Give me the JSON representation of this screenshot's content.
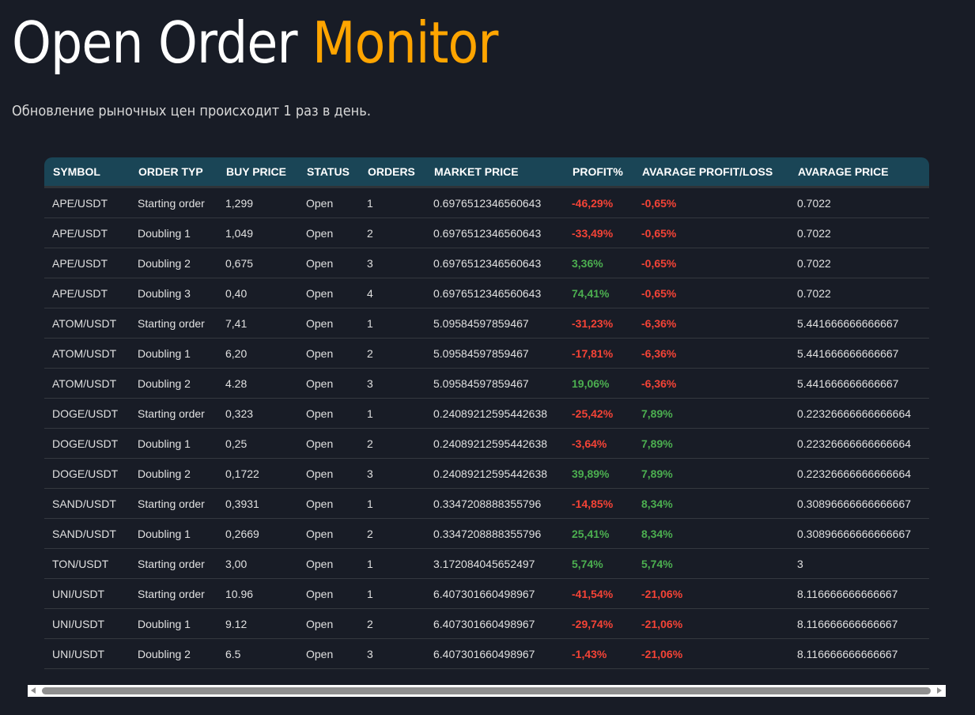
{
  "header": {
    "title_main": "Open Order",
    "title_accent": "Monitor",
    "subtitle": "Обновление рыночных цен происходит 1 раз в день."
  },
  "colors": {
    "background": "#181c26",
    "accent": "#ffa500",
    "header_bg": "#1a4556",
    "positive": "#4caf50",
    "negative": "#f44336"
  },
  "table": {
    "columns": [
      "SYMBOL",
      "ORDER TYP",
      "BUY PRICE",
      "STATUS",
      "ORDERS",
      "MARKET PRICE",
      "PROFIT%",
      "AVARAGE PROFIT/LOSS",
      "AVARAGE PRICE"
    ],
    "rows": [
      {
        "symbol": "APE/USDT",
        "order_type": "Starting order",
        "buy_price": "1,299",
        "status": "Open",
        "orders": "1",
        "market_price": "0.6976512346560643",
        "profit": "-46,29%",
        "avg_profit_loss": "-0,65%",
        "avg_price": "0.7022"
      },
      {
        "symbol": "APE/USDT",
        "order_type": "Doubling 1",
        "buy_price": "1,049",
        "status": "Open",
        "orders": "2",
        "market_price": "0.6976512346560643",
        "profit": "-33,49%",
        "avg_profit_loss": "-0,65%",
        "avg_price": "0.7022"
      },
      {
        "symbol": "APE/USDT",
        "order_type": "Doubling 2",
        "buy_price": "0,675",
        "status": "Open",
        "orders": "3",
        "market_price": "0.6976512346560643",
        "profit": "3,36%",
        "avg_profit_loss": "-0,65%",
        "avg_price": "0.7022"
      },
      {
        "symbol": "APE/USDT",
        "order_type": "Doubling 3",
        "buy_price": "0,40",
        "status": "Open",
        "orders": "4",
        "market_price": "0.6976512346560643",
        "profit": "74,41%",
        "avg_profit_loss": "-0,65%",
        "avg_price": "0.7022"
      },
      {
        "symbol": "ATOM/USDT",
        "order_type": "Starting order",
        "buy_price": "7,41",
        "status": "Open",
        "orders": "1",
        "market_price": "5.09584597859467",
        "profit": "-31,23%",
        "avg_profit_loss": "-6,36%",
        "avg_price": "5.441666666666667"
      },
      {
        "symbol": "ATOM/USDT",
        "order_type": "Doubling 1",
        "buy_price": "6,20",
        "status": "Open",
        "orders": "2",
        "market_price": "5.09584597859467",
        "profit": "-17,81%",
        "avg_profit_loss": "-6,36%",
        "avg_price": "5.441666666666667"
      },
      {
        "symbol": "ATOM/USDT",
        "order_type": "Doubling 2",
        "buy_price": "4.28",
        "status": "Open",
        "orders": "3",
        "market_price": "5.09584597859467",
        "profit": "19,06%",
        "avg_profit_loss": "-6,36%",
        "avg_price": "5.441666666666667"
      },
      {
        "symbol": "DOGE/USDT",
        "order_type": "Starting order",
        "buy_price": "0,323",
        "status": "Open",
        "orders": "1",
        "market_price": "0.24089212595442638",
        "profit": "-25,42%",
        "avg_profit_loss": "7,89%",
        "avg_price": "0.22326666666666664"
      },
      {
        "symbol": "DOGE/USDT",
        "order_type": "Doubling 1",
        "buy_price": "0,25",
        "status": "Open",
        "orders": "2",
        "market_price": "0.24089212595442638",
        "profit": "-3,64%",
        "avg_profit_loss": "7,89%",
        "avg_price": "0.22326666666666664"
      },
      {
        "symbol": "DOGE/USDT",
        "order_type": "Doubling 2",
        "buy_price": "0,1722",
        "status": "Open",
        "orders": "3",
        "market_price": "0.24089212595442638",
        "profit": "39,89%",
        "avg_profit_loss": "7,89%",
        "avg_price": "0.22326666666666664"
      },
      {
        "symbol": "SAND/USDT",
        "order_type": "Starting order",
        "buy_price": "0,3931",
        "status": "Open",
        "orders": "1",
        "market_price": "0.3347208888355796",
        "profit": "-14,85%",
        "avg_profit_loss": "8,34%",
        "avg_price": "0.30896666666666667"
      },
      {
        "symbol": "SAND/USDT",
        "order_type": "Doubling 1",
        "buy_price": "0,2669",
        "status": "Open",
        "orders": "2",
        "market_price": "0.3347208888355796",
        "profit": "25,41%",
        "avg_profit_loss": "8,34%",
        "avg_price": "0.30896666666666667"
      },
      {
        "symbol": "TON/USDT",
        "order_type": "Starting order",
        "buy_price": "3,00",
        "status": "Open",
        "orders": "1",
        "market_price": "3.172084045652497",
        "profit": "5,74%",
        "avg_profit_loss": "5,74%",
        "avg_price": "3"
      },
      {
        "symbol": "UNI/USDT",
        "order_type": "Starting order",
        "buy_price": "10.96",
        "status": "Open",
        "orders": "1",
        "market_price": "6.407301660498967",
        "profit": "-41,54%",
        "avg_profit_loss": "-21,06%",
        "avg_price": "8.116666666666667"
      },
      {
        "symbol": "UNI/USDT",
        "order_type": "Doubling 1",
        "buy_price": "9.12",
        "status": "Open",
        "orders": "2",
        "market_price": "6.407301660498967",
        "profit": "-29,74%",
        "avg_profit_loss": "-21,06%",
        "avg_price": "8.116666666666667"
      },
      {
        "symbol": "UNI/USDT",
        "order_type": "Doubling 2",
        "buy_price": "6.5",
        "status": "Open",
        "orders": "3",
        "market_price": "6.407301660498967",
        "profit": "-1,43%",
        "avg_profit_loss": "-21,06%",
        "avg_price": "8.116666666666667"
      }
    ]
  },
  "scrollbar": {
    "left_arrow_icon": "triangle-left-icon",
    "right_arrow_icon": "triangle-right-icon"
  }
}
